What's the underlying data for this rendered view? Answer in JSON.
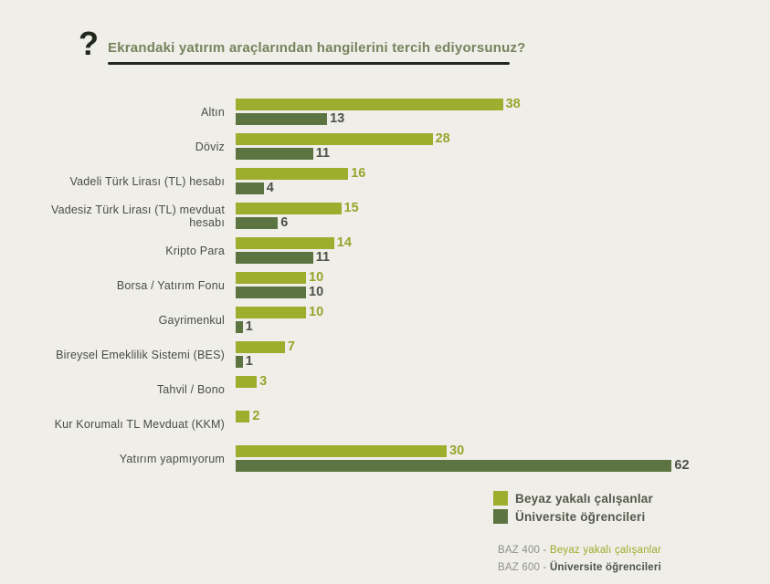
{
  "header": {
    "question_mark": "?",
    "title": "Ekrandaki yatırım araçlarından hangilerini tercih ediyorsunuz?"
  },
  "chart_data": {
    "type": "bar",
    "orientation": "horizontal",
    "title": "Ekrandaki yatırım araçlarından hangilerini tercih ediyorsunuz?",
    "categories": [
      "Altın",
      "Döviz",
      "Vadeli Türk Lirası (TL) hesabı",
      "Vadesiz Türk Lirası (TL) mevduat hesabı",
      "Kripto Para",
      "Borsa / Yatırım Fonu",
      "Gayrimenkul",
      "Bireysel Emeklilik Sistemi (BES)",
      "Tahvil / Bono",
      "Kur Korumalı TL Mevduat (KKM)",
      "Yatırım yapmıyorum"
    ],
    "series": [
      {
        "name": "Beyaz yakalı çalışanlar",
        "color": "#9DAD2D",
        "value_color": "#96A52B",
        "values": [
          38,
          28,
          16,
          15,
          14,
          10,
          10,
          7,
          3,
          2,
          30
        ]
      },
      {
        "name": "Üniversite öğrencileri",
        "color": "#5C7441",
        "value_color": "#4D5245",
        "values": [
          13,
          11,
          4,
          6,
          11,
          10,
          1,
          1,
          null,
          null,
          62
        ]
      }
    ],
    "xlim": [
      0,
      62
    ],
    "value_labels": true,
    "grid": false,
    "legend_position": "bottom-right"
  },
  "footer": {
    "notes": [
      {
        "prefix": "BAZ 400 - ",
        "label": "Beyaz yakalı çalışanlar",
        "color": "#9DAD2D",
        "bold": false
      },
      {
        "prefix": "BAZ 600 - ",
        "label": "Üniversite öğrencileri",
        "color": "#4C5446",
        "bold": true
      }
    ]
  },
  "colors": {
    "background": "#EFEEE9",
    "title": "#76835C",
    "underline": "#20281B",
    "category_label": "#4A4E43"
  }
}
